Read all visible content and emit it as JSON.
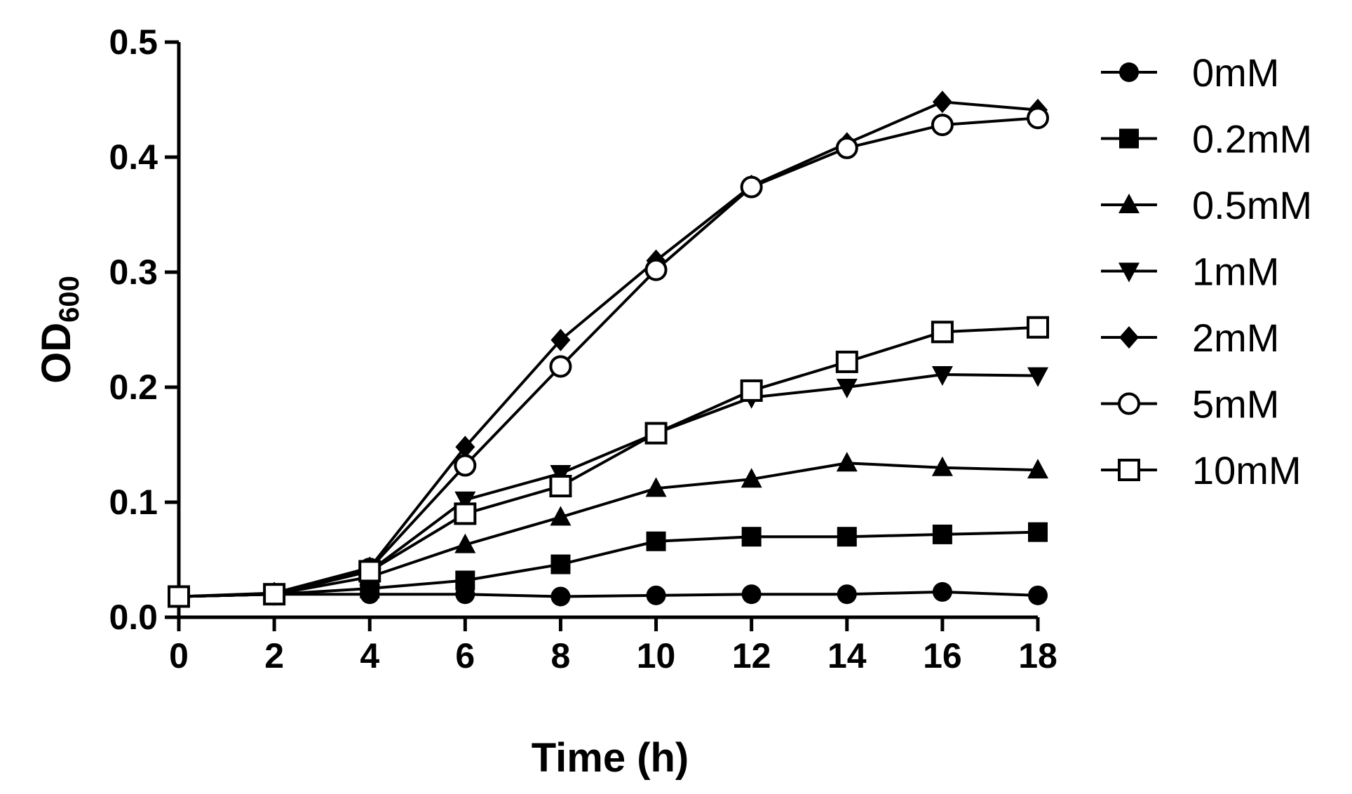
{
  "chart_data": {
    "type": "line",
    "title": "",
    "xlabel": "Time (h)",
    "ylabel_main": "OD",
    "ylabel_sub": "600",
    "xlim": [
      0,
      18
    ],
    "ylim": [
      0,
      0.5
    ],
    "xticks": [
      "0",
      "2",
      "4",
      "6",
      "8",
      "10",
      "12",
      "14",
      "16",
      "18"
    ],
    "yticks": [
      "0.0",
      "0.1",
      "0.2",
      "0.3",
      "0.4",
      "0.5"
    ],
    "grid": false,
    "legend_position": "right",
    "x": [
      0,
      2,
      4,
      6,
      8,
      10,
      12,
      14,
      16,
      18
    ],
    "series": [
      {
        "name": "0mM",
        "marker": "circle-filled",
        "values": [
          0.018,
          0.02,
          0.02,
          0.02,
          0.018,
          0.019,
          0.02,
          0.02,
          0.022,
          0.019
        ]
      },
      {
        "name": "0.2mM",
        "marker": "square-filled",
        "values": [
          0.018,
          0.02,
          0.025,
          0.032,
          0.046,
          0.066,
          0.07,
          0.07,
          0.072,
          0.074
        ]
      },
      {
        "name": "0.5mM",
        "marker": "triangle-up",
        "values": [
          0.018,
          0.02,
          0.035,
          0.063,
          0.087,
          0.112,
          0.12,
          0.134,
          0.13,
          0.128
        ]
      },
      {
        "name": "1mM",
        "marker": "triangle-down",
        "values": [
          0.018,
          0.02,
          0.04,
          0.102,
          0.125,
          0.16,
          0.191,
          0.2,
          0.211,
          0.21
        ]
      },
      {
        "name": "2mM",
        "marker": "diamond-filled",
        "values": [
          0.018,
          0.021,
          0.043,
          0.148,
          0.241,
          0.31,
          0.375,
          0.412,
          0.448,
          0.441
        ]
      },
      {
        "name": "5mM",
        "marker": "circle-open",
        "values": [
          0.018,
          0.02,
          0.042,
          0.132,
          0.218,
          0.302,
          0.374,
          0.408,
          0.428,
          0.434
        ]
      },
      {
        "name": "10mM",
        "marker": "square-open",
        "values": [
          0.018,
          0.02,
          0.04,
          0.09,
          0.114,
          0.16,
          0.197,
          0.222,
          0.248,
          0.252
        ]
      }
    ]
  }
}
